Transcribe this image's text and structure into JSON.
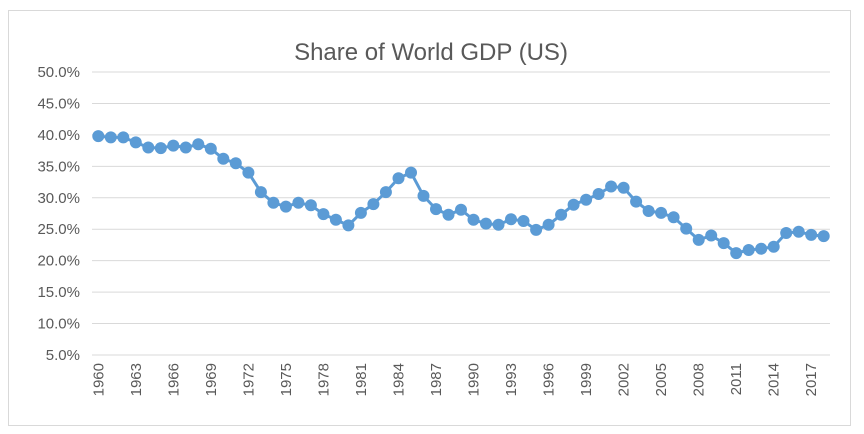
{
  "chart_data": {
    "type": "line",
    "title": "Share of World GDP (US)",
    "xlabel": "",
    "ylabel": "",
    "ylim": [
      5,
      50
    ],
    "y_ticks": [
      "5.0%",
      "10.0%",
      "15.0%",
      "20.0%",
      "25.0%",
      "30.0%",
      "35.0%",
      "40.0%",
      "45.0%",
      "50.0%"
    ],
    "y_tick_values": [
      5,
      10,
      15,
      20,
      25,
      30,
      35,
      40,
      45,
      50
    ],
    "x_tick_labels": [
      "1960",
      "1963",
      "1966",
      "1969",
      "1972",
      "1975",
      "1978",
      "1981",
      "1984",
      "1987",
      "1990",
      "1993",
      "1996",
      "1999",
      "2002",
      "2005",
      "2008",
      "2011",
      "2014",
      "2017"
    ],
    "grid": true,
    "legend": "none",
    "color": "#5b9bd5",
    "x": [
      1960,
      1961,
      1962,
      1963,
      1964,
      1965,
      1966,
      1967,
      1968,
      1969,
      1970,
      1971,
      1972,
      1973,
      1974,
      1975,
      1976,
      1977,
      1978,
      1979,
      1980,
      1981,
      1982,
      1983,
      1984,
      1985,
      1986,
      1987,
      1988,
      1989,
      1990,
      1991,
      1992,
      1993,
      1994,
      1995,
      1996,
      1997,
      1998,
      1999,
      2000,
      2001,
      2002,
      2003,
      2004,
      2005,
      2006,
      2007,
      2008,
      2009,
      2010,
      2011,
      2012,
      2013,
      2014,
      2015,
      2016,
      2017,
      2018
    ],
    "series": [
      {
        "values": [
          39.8,
          39.6,
          39.6,
          38.8,
          38.0,
          37.9,
          38.3,
          38.0,
          38.5,
          37.8,
          36.2,
          35.5,
          34.0,
          30.9,
          29.2,
          28.6,
          29.2,
          28.8,
          27.4,
          26.5,
          25.6,
          27.6,
          29.0,
          30.9,
          33.1,
          34.0,
          30.3,
          28.2,
          27.3,
          28.1,
          26.5,
          25.9,
          25.7,
          26.6,
          26.3,
          24.9,
          25.7,
          27.3,
          28.9,
          29.7,
          30.6,
          31.8,
          31.6,
          29.4,
          27.9,
          27.6,
          26.9,
          25.1,
          23.3,
          24.0,
          22.8,
          21.2,
          21.7,
          21.9,
          22.2,
          24.4,
          24.6,
          24.1,
          23.9
        ]
      }
    ]
  }
}
